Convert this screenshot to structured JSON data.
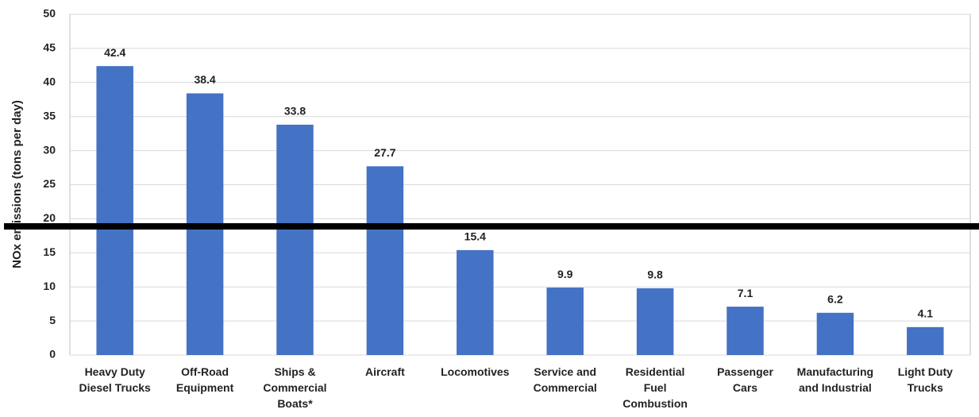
{
  "chart_data": {
    "type": "bar",
    "y_label": "NOx emissions (tons per day)",
    "categories": [
      [
        "Heavy Duty",
        "Diesel Trucks"
      ],
      [
        "Off-Road",
        "Equipment"
      ],
      [
        "Ships &",
        "Commercial",
        "Boats*"
      ],
      [
        "Aircraft"
      ],
      [
        "Locomotives"
      ],
      [
        "Service and",
        "Commercial"
      ],
      [
        "Residential",
        "Fuel",
        "Combustion"
      ],
      [
        "Passenger",
        "Cars"
      ],
      [
        "Manufacturing",
        "and Industrial"
      ],
      [
        "Light Duty",
        "Trucks"
      ]
    ],
    "values": [
      42.4,
      38.4,
      33.8,
      27.7,
      15.4,
      9.9,
      9.8,
      7.1,
      6.2,
      4.1
    ],
    "color": "#4472c4",
    "ylim": [
      0,
      50
    ],
    "yticks": [
      0,
      5,
      10,
      15,
      20,
      25,
      30,
      35,
      40,
      45,
      50
    ],
    "grid": true
  }
}
